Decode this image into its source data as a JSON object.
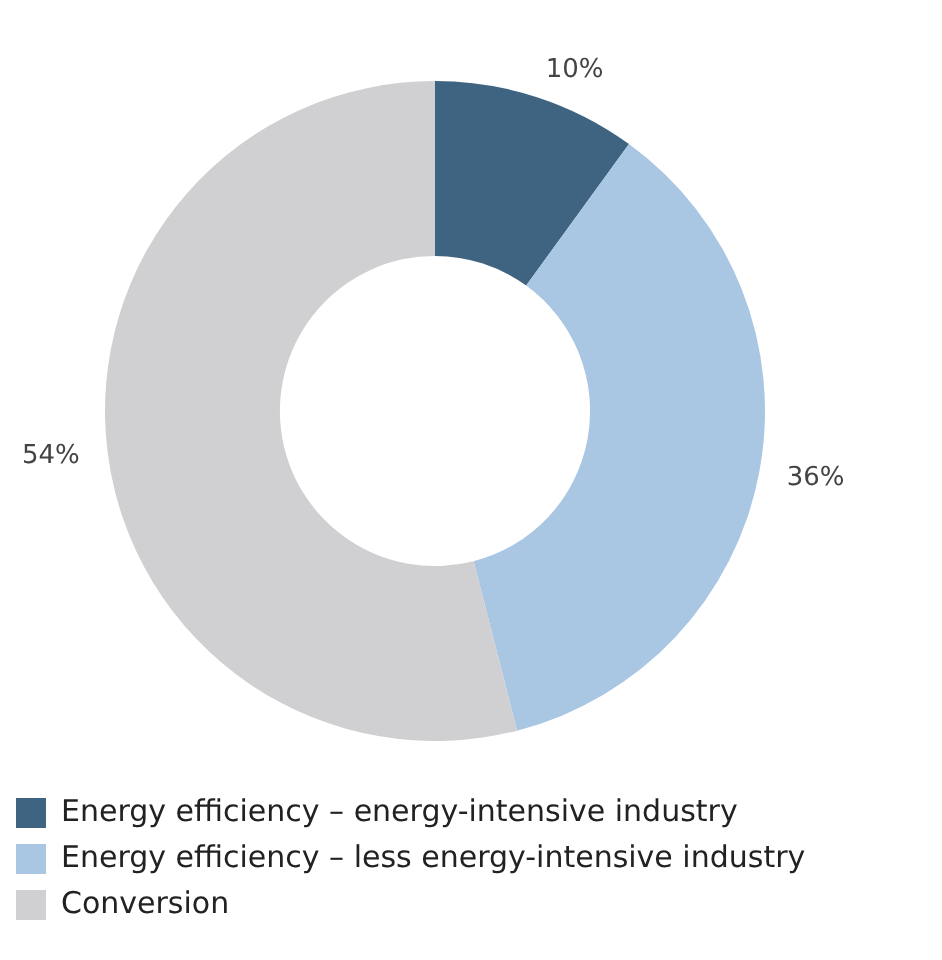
{
  "chart_data": {
    "type": "donut",
    "categories": [
      "Energy efficiency – energy-intensive industry",
      "Energy efficiency – less energy-intensive industry",
      "Conversion"
    ],
    "values": [
      10,
      36,
      54
    ],
    "colors": [
      "#3f6482",
      "#a9c6e3",
      "#d0d0d2"
    ],
    "value_labels": [
      "10%",
      "36%",
      "54%"
    ],
    "legend": "bottom left"
  }
}
